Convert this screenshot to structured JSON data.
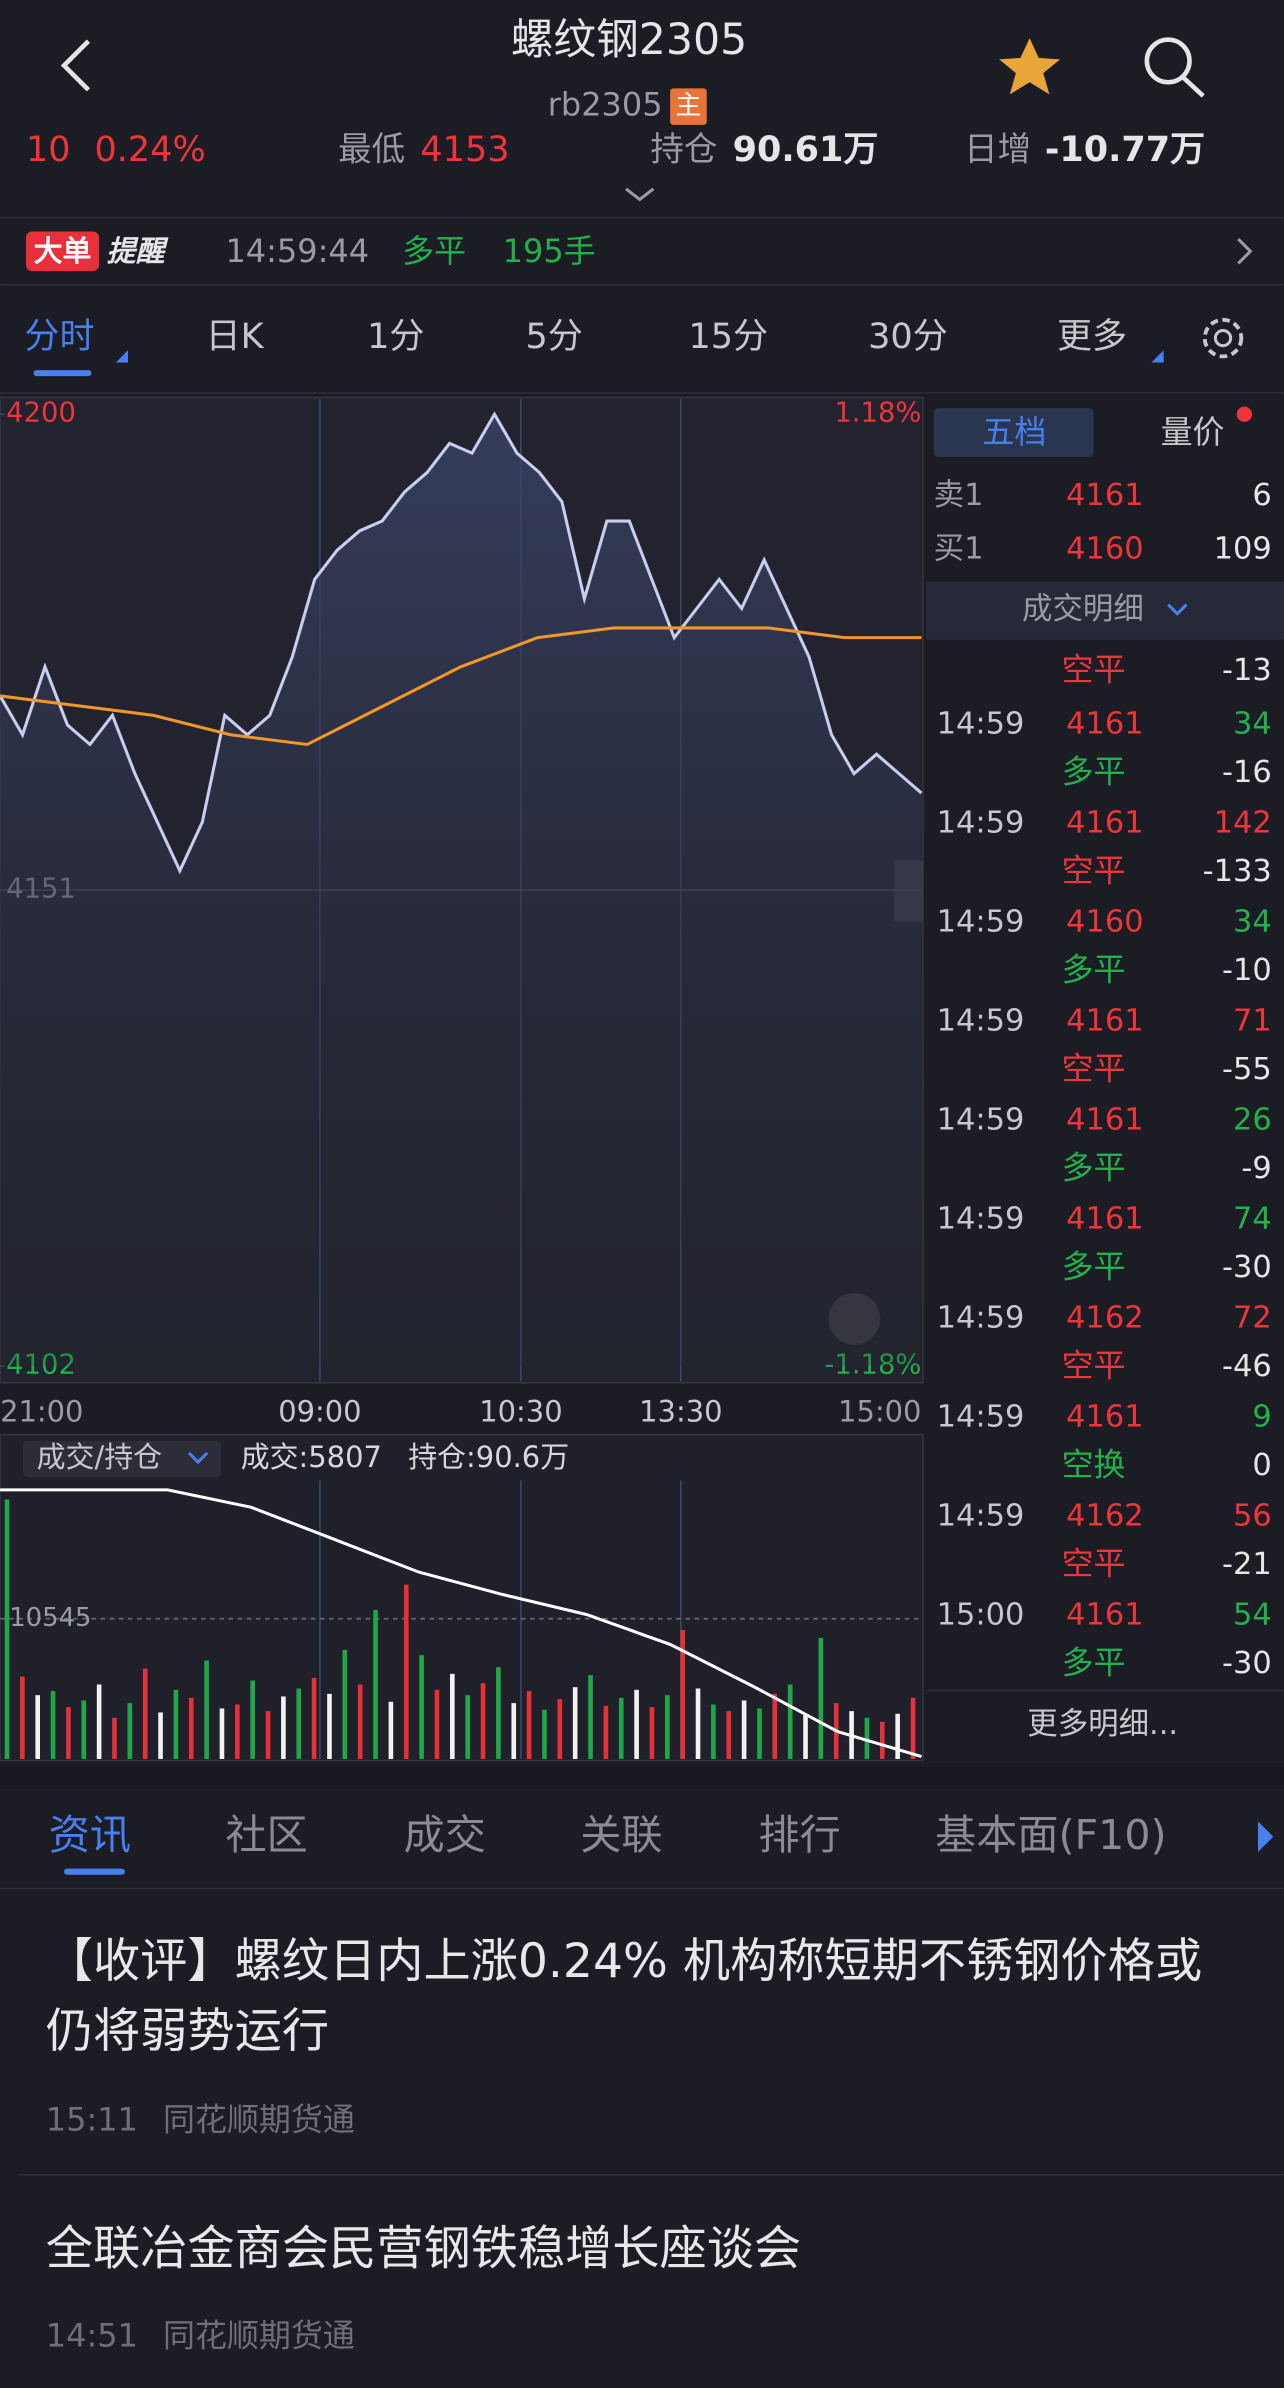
{
  "header": {
    "title": "螺纹钢2305",
    "code": "rb2305",
    "badge": "主"
  },
  "stats": {
    "change": "10",
    "change_pct": "0.24%",
    "low_label": "最低",
    "low": "4153",
    "oi_label": "持仓",
    "oi": "90.61万",
    "daily_label": "日增",
    "daily": "-10.77万"
  },
  "alert": {
    "badge": "大单",
    "label": "提醒",
    "time": "14:59:44",
    "type": "多平",
    "volume": "195手"
  },
  "period_tabs": [
    "分时",
    "日K",
    "1分",
    "5分",
    "15分",
    "30分",
    "更多"
  ],
  "chart": {
    "ylim": [
      4102,
      4200
    ],
    "yticks": [
      4200,
      4151,
      4102
    ],
    "pct_top": "1.18%",
    "pct_bottom": "-1.18%",
    "x_labels": [
      "21:00",
      "09:00",
      "10:30",
      "13:30",
      "15:00"
    ],
    "price": {
      "color": "#c9cdf0",
      "values": [
        4171,
        4167,
        4174,
        4168,
        4166,
        4169,
        4163,
        4158,
        4153,
        4158,
        4169,
        4167,
        4169,
        4175,
        4183,
        4186,
        4188,
        4189,
        4192,
        4194,
        4197,
        4196,
        4200,
        4196,
        4194,
        4191,
        4181,
        4189,
        4189,
        4183,
        4177,
        4180,
        4183,
        4180,
        4185,
        4180,
        4175,
        4167,
        4163,
        4165,
        4163,
        4161
      ]
    },
    "average": {
      "color": "#f0962a",
      "values": [
        4171,
        4170,
        4169,
        4167,
        4166,
        4170,
        4174,
        4177,
        4178,
        4178,
        4178,
        4177,
        4177
      ]
    },
    "volume_header": {
      "selector": "成交/持仓",
      "volume": "成交:5807",
      "oi": "持仓:90.6万"
    },
    "volume": {
      "ylim": [
        0,
        20600
      ],
      "yticks": [
        10545
      ],
      "palette": {
        "r": "#e8303a",
        "g": "#1fa84a",
        "w": "#f2f2f2"
      },
      "values": [
        19500,
        6200,
        4800,
        5100,
        3900,
        4400,
        5600,
        3100,
        4200,
        6800,
        3500,
        5200,
        4600,
        7400,
        3800,
        4100,
        5900,
        3600,
        4700,
        5300,
        6100,
        4900,
        8200,
        5600,
        11200,
        4300,
        13100,
        7800,
        5200,
        6400,
        4800,
        5700,
        6900,
        4200,
        5100,
        3700,
        4500,
        5400,
        6300,
        4000,
        4600,
        5200,
        3900,
        4800,
        9700,
        5300,
        4100,
        3600,
        4400,
        3800,
        4900,
        5600,
        3300,
        9100,
        4200,
        3600,
        3100,
        2800,
        3400,
        4600
      ],
      "colors": [
        "g",
        "r",
        "w",
        "g",
        "r",
        "g",
        "w",
        "r",
        "g",
        "r",
        "w",
        "g",
        "r",
        "g",
        "w",
        "r",
        "g",
        "r",
        "w",
        "g",
        "r",
        "w",
        "g",
        "r",
        "g",
        "w",
        "r",
        "g",
        "r",
        "w",
        "g",
        "r",
        "g",
        "w",
        "r",
        "g",
        "r",
        "w",
        "g",
        "r",
        "g",
        "w",
        "r",
        "g",
        "r",
        "w",
        "g",
        "r",
        "w",
        "g",
        "r",
        "g",
        "w",
        "g",
        "r",
        "w",
        "g",
        "r",
        "w",
        "r"
      ]
    },
    "open_interest": {
      "color": "#ffffff",
      "ylim": [
        90.5,
        101.5
      ],
      "values": [
        101.3,
        101.3,
        101.3,
        100.6,
        99.3,
        98.0,
        97.1,
        96.3,
        95.1,
        93.4,
        91.6,
        90.6
      ]
    }
  },
  "order_book": {
    "tabs": [
      "五档",
      "量价"
    ],
    "ask": {
      "label": "卖1",
      "price": "4161",
      "volume": "6"
    },
    "bid": {
      "label": "买1",
      "price": "4160",
      "volume": "109"
    },
    "detail_title": "成交明细"
  },
  "trades": {
    "carry": {
      "type": "空平",
      "delta": "-13"
    },
    "rows": [
      [
        "14:59",
        "4161",
        "34",
        "多平",
        "-16"
      ],
      [
        "14:59",
        "4161",
        "142",
        "空平",
        "-133"
      ],
      [
        "14:59",
        "4160",
        "34",
        "多平",
        "-10"
      ],
      [
        "14:59",
        "4161",
        "71",
        "空平",
        "-55"
      ],
      [
        "14:59",
        "4161",
        "26",
        "多平",
        "-9"
      ],
      [
        "14:59",
        "4161",
        "74",
        "多平",
        "-30"
      ],
      [
        "14:59",
        "4162",
        "72",
        "空平",
        "-46"
      ],
      [
        "14:59",
        "4161",
        "9",
        "空换",
        "0"
      ],
      [
        "14:59",
        "4162",
        "56",
        "空平",
        "-21"
      ],
      [
        "15:00",
        "4161",
        "54",
        "多平",
        "-30"
      ]
    ],
    "volume_colors": [
      "g",
      "r",
      "g",
      "r",
      "g",
      "g",
      "r",
      "g",
      "r",
      "g"
    ],
    "more": "更多明细..."
  },
  "news_tabs": [
    "资讯",
    "社区",
    "成交",
    "关联",
    "排行",
    "基本面(F10)"
  ],
  "news": [
    {
      "title": "【收评】螺纹日内上涨0.24% 机构称短期不锈钢价格或仍将弱势运行",
      "time": "15:11",
      "source": "同花顺期货通"
    },
    {
      "title": "全联冶金商会民营钢铁稳增长座谈会",
      "time": "14:51",
      "source": "同花顺期货通"
    }
  ]
}
